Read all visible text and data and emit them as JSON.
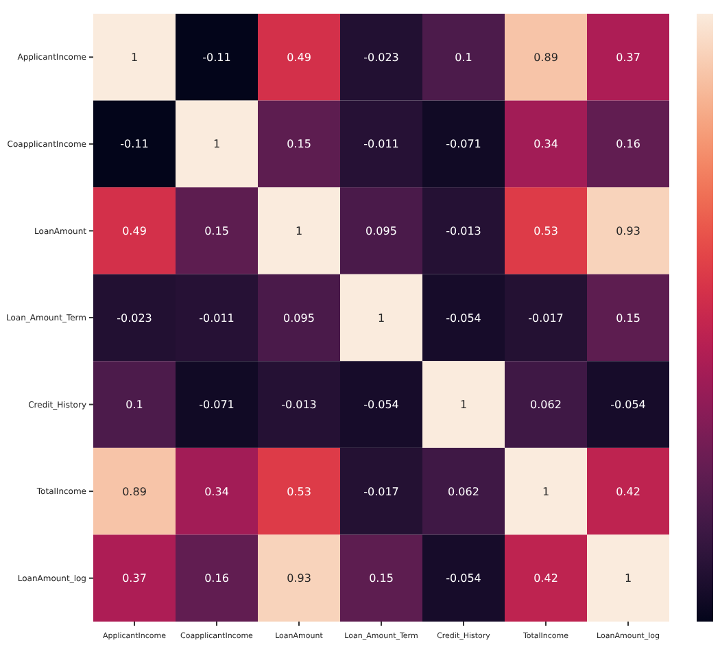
{
  "chart_data": {
    "type": "heatmap",
    "categories": [
      "ApplicantIncome",
      "CoapplicantIncome",
      "LoanAmount",
      "Loan_Amount_Term",
      "Credit_History",
      "TotalIncome",
      "LoanAmount_log"
    ],
    "y_categories": [
      "ApplicantIncome",
      "CoapplicantIncome",
      "LoanAmount",
      "Loan_Amount_Term",
      "Credit_History",
      "TotalIncome",
      "LoanAmount_log"
    ],
    "cells": [
      [
        1,
        -0.11,
        0.49,
        -0.023,
        0.1,
        0.89,
        0.37
      ],
      [
        -0.11,
        1,
        0.15,
        -0.011,
        -0.071,
        0.34,
        0.16
      ],
      [
        0.49,
        0.15,
        1,
        0.095,
        -0.013,
        0.53,
        0.93
      ],
      [
        -0.023,
        -0.011,
        0.095,
        1,
        -0.054,
        -0.017,
        0.15
      ],
      [
        0.1,
        -0.071,
        -0.013,
        -0.054,
        1,
        0.062,
        -0.054
      ],
      [
        0.89,
        0.34,
        0.53,
        -0.017,
        0.062,
        1,
        0.42
      ],
      [
        0.37,
        0.16,
        0.93,
        0.15,
        -0.054,
        0.42,
        1
      ]
    ],
    "data_labels": true
  }
}
